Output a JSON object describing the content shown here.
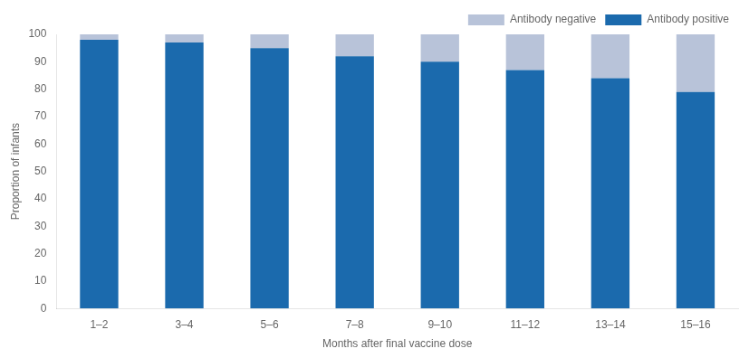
{
  "chart_data": {
    "type": "bar",
    "stacked": true,
    "categories": [
      "1–2",
      "3–4",
      "5–6",
      "7–8",
      "9–10",
      "11–12",
      "13–14",
      "15–16"
    ],
    "series": [
      {
        "name": "Antibody positive",
        "color": "#1b6aad",
        "values": [
          98,
          97,
          95,
          92,
          90,
          87,
          84,
          79
        ]
      },
      {
        "name": "Antibody negative",
        "color": "#b8c3d9",
        "values": [
          2,
          3,
          5,
          8,
          10,
          13,
          16,
          21
        ]
      }
    ],
    "xlabel": "Months after final vaccine dose",
    "ylabel": "Proportion of infants",
    "ylim": [
      0,
      100
    ],
    "yticks": [
      0,
      10,
      20,
      30,
      40,
      50,
      60,
      70,
      80,
      90,
      100
    ],
    "grid": false,
    "legend": "upper right"
  }
}
